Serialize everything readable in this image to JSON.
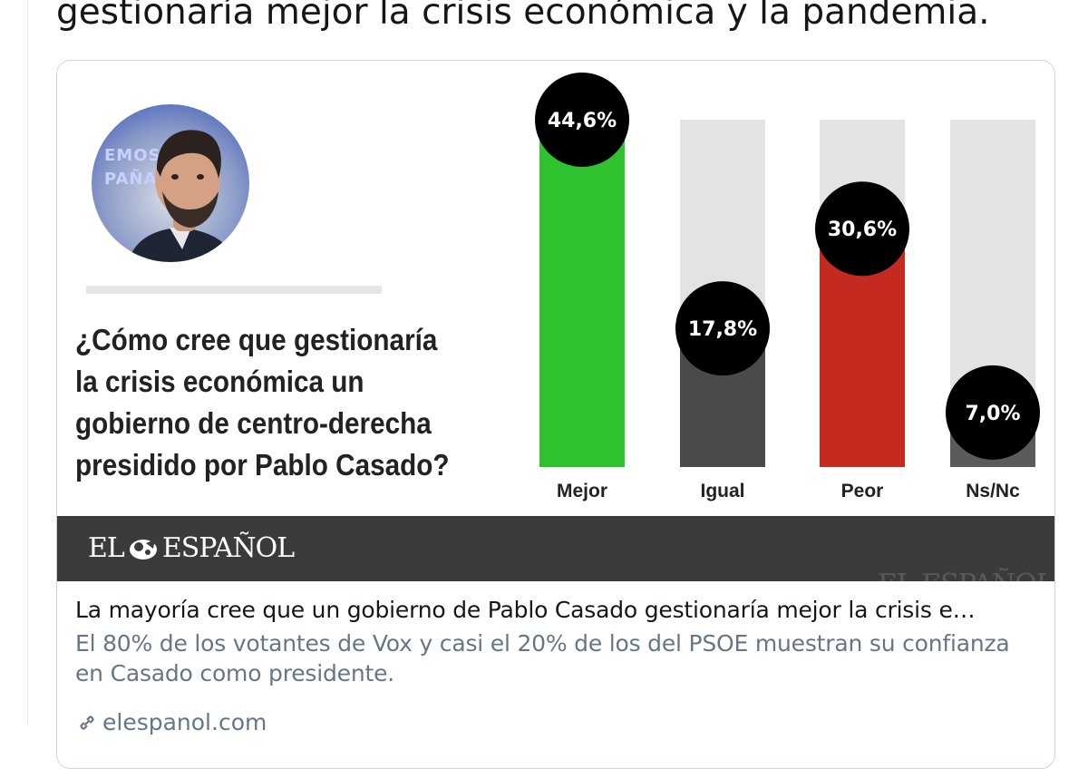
{
  "tweet": {
    "text": "gestionaría mejor la crisis económica y la pandemia."
  },
  "card": {
    "graphic": {
      "avatar_bg_text": [
        "EMOS",
        "PAÑA"
      ],
      "question": "¿Cómo cree que gestionaría la crisis económica un gobierno de centro-derecha presidido por Pablo Casado?",
      "brand": {
        "left": "EL",
        "right": "ESPAÑOL",
        "watermark": "EL ESPAÑOL"
      }
    },
    "title": "La mayoría cree que un gobierno de Pablo Casado gestionaría mejor la crisis e…",
    "description": "El 80% de los votantes de Vox y casi el 20% de los del PSOE muestran su confianza en Casado como presidente.",
    "link": "elespanol.com"
  },
  "colors": {
    "mejor": "#2ec32e",
    "igual": "#4a4a4a",
    "peor": "#c42a20",
    "nsnc": "#5a5a5a",
    "track": "#e3e3e3",
    "bubble": "#000000"
  },
  "chart_data": {
    "type": "bar",
    "categories": [
      "Mejor",
      "Igual",
      "Peor",
      "Ns/Nc"
    ],
    "values": [
      44.6,
      17.8,
      30.6,
      7.0
    ],
    "labels": [
      "44,6%",
      "17,8%",
      "30,6%",
      "7,0%"
    ],
    "ylim": [
      0,
      44.6
    ],
    "title": "",
    "xlabel": "",
    "ylabel": ""
  }
}
